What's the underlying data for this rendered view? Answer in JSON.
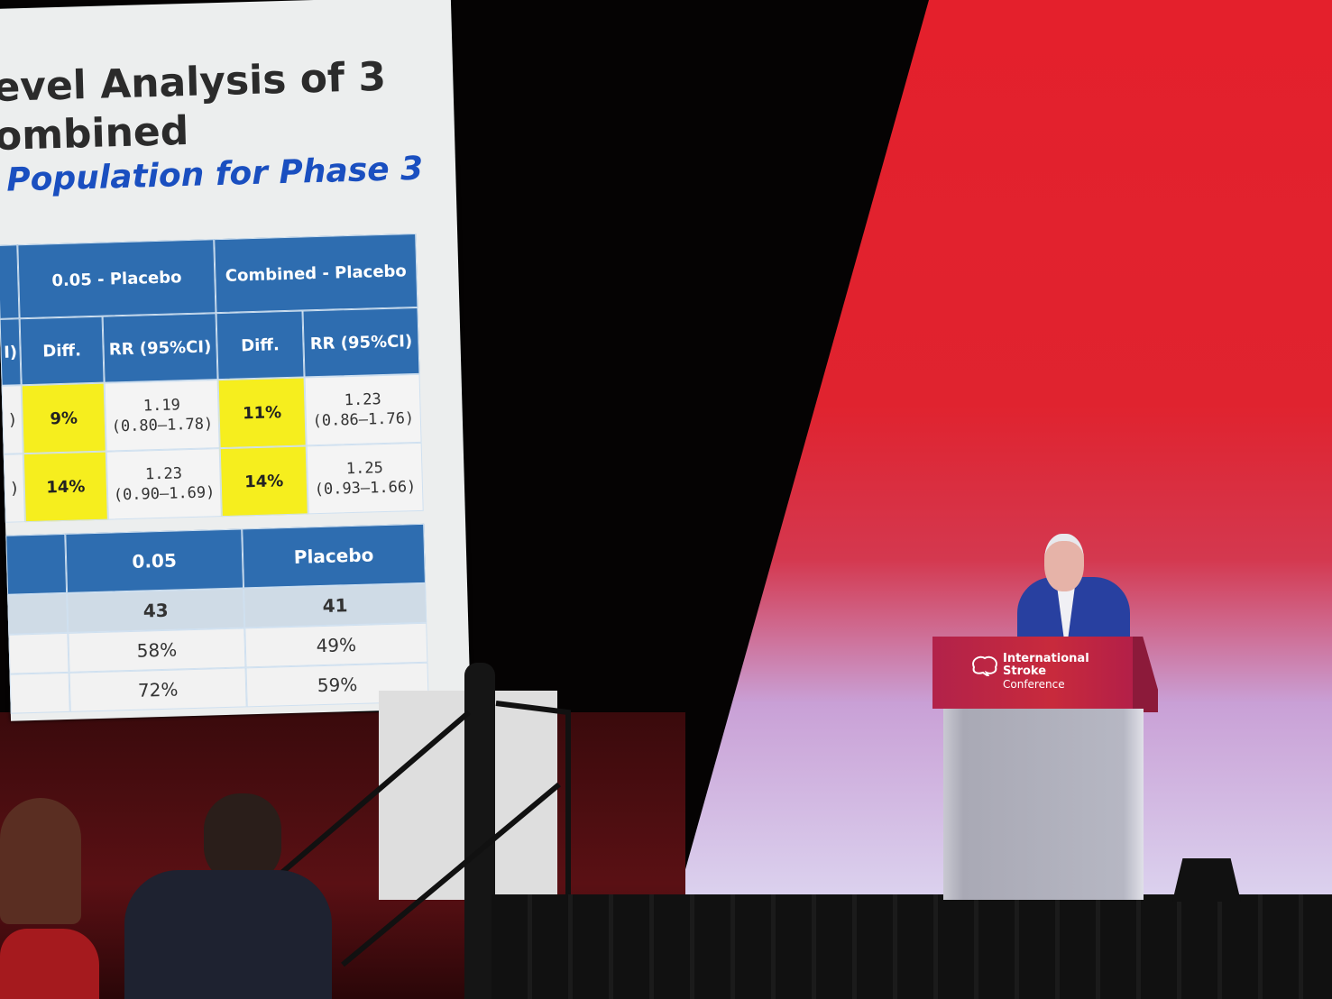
{
  "slide": {
    "title_line1": "evel Analysis of 3",
    "title_line2": "ombined",
    "subtitle": "Population for Phase 3",
    "table1": {
      "group_headers": [
        "0.05 - Placebo",
        "Combined - Placebo"
      ],
      "cut_header": "I)",
      "sub_headers": [
        "Diff.",
        "RR (95%CI)",
        "Diff.",
        "RR (95%CI)"
      ],
      "rows": [
        {
          "cut": ")",
          "diff1": "9%",
          "rr1": "1.19",
          "ci1": "(0.80–1.78)",
          "diff2": "11%",
          "rr2": "1.23",
          "ci2": "(0.86–1.76)"
        },
        {
          "cut": ")",
          "diff1": "14%",
          "rr1": "1.23",
          "ci1": "(0.90–1.69)",
          "diff2": "14%",
          "rr2": "1.25",
          "ci2": "(0.93–1.66)"
        }
      ]
    },
    "table2": {
      "headers": [
        "0.05",
        "Placebo"
      ],
      "rows": [
        [
          "43",
          "41"
        ],
        [
          "58%",
          "49%"
        ],
        [
          "72%",
          "59%"
        ]
      ]
    },
    "highlight_color": "#f6ee1e",
    "header_color": "#2e6db0"
  },
  "podium": {
    "logo_icon": "brain-icon",
    "logo_line1": "International",
    "logo_line2": "Stroke",
    "logo_line3": "Conference"
  }
}
